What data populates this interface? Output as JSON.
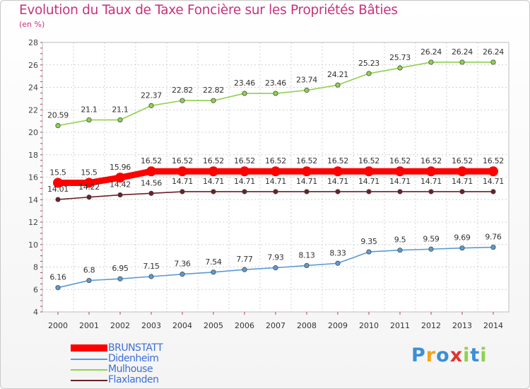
{
  "chart_data": {
    "type": "line",
    "title": "Evolution du Taux de Taxe Foncière sur les Propriétés Bâties",
    "ylabel": "(en %)",
    "xlabel": "",
    "ylim": [
      4,
      28
    ],
    "yticks": [
      4,
      6,
      8,
      10,
      12,
      14,
      16,
      18,
      20,
      22,
      24,
      26,
      28
    ],
    "x": [
      "2000",
      "2001",
      "2002",
      "2003",
      "2004",
      "2005",
      "2006",
      "2007",
      "2008",
      "2009",
      "2010",
      "2011",
      "2012",
      "2013",
      "2014"
    ],
    "grid": true,
    "legend_position": "bottom-left",
    "series": [
      {
        "name": "Mulhouse",
        "color": "#8fd14f",
        "values": [
          20.59,
          21.1,
          21.1,
          22.37,
          22.82,
          22.82,
          23.46,
          23.46,
          23.74,
          24.21,
          25.23,
          25.73,
          26.24,
          26.24,
          26.24
        ],
        "labels": [
          "20.59",
          "21.1",
          "21.1",
          "22.37",
          "22.82",
          "22.82",
          "23.46",
          "23.46",
          "23.74",
          "24.21",
          "25.23",
          "25.73",
          "26.24",
          "26.24",
          "26.24"
        ]
      },
      {
        "name": "BRUNSTATT",
        "color": "#ff0000",
        "values": [
          15.5,
          15.5,
          15.96,
          16.52,
          16.52,
          16.52,
          16.52,
          16.52,
          16.52,
          16.52,
          16.52,
          16.52,
          16.52,
          16.52,
          16.52
        ],
        "labels": [
          "15.5",
          "15.5",
          "15.96",
          "16.52",
          "16.52",
          "16.52",
          "16.52",
          "16.52",
          "16.52",
          "16.52",
          "16.52",
          "16.52",
          "16.52",
          "16.52",
          "16.52"
        ]
      },
      {
        "name": "Flaxlanden",
        "color": "#6b1f2a",
        "values": [
          14.01,
          14.22,
          14.42,
          14.56,
          14.71,
          14.71,
          14.71,
          14.71,
          14.71,
          14.71,
          14.71,
          14.71,
          14.71,
          14.71,
          14.71
        ],
        "labels": [
          "14.01",
          "14.22",
          "14.42",
          "14.56",
          "14.71",
          "14.71",
          "14.71",
          "14.71",
          "14.71",
          "14.71",
          "14.71",
          "14.71",
          "14.71",
          "14.71",
          "14.71"
        ]
      },
      {
        "name": "Didenheim",
        "color": "#5b9bd5",
        "values": [
          6.16,
          6.8,
          6.95,
          7.15,
          7.36,
          7.54,
          7.77,
          7.93,
          8.13,
          8.33,
          9.35,
          9.5,
          9.59,
          9.69,
          9.76
        ],
        "labels": [
          "6.16",
          "6.8",
          "6.95",
          "7.15",
          "7.36",
          "7.54",
          "7.77",
          "7.93",
          "8.13",
          "8.33",
          "9.35",
          "9.5",
          "9.59",
          "9.69",
          "9.76"
        ]
      }
    ],
    "legend": [
      {
        "name": "BRUNSTATT",
        "color": "#ff0000"
      },
      {
        "name": "Didenheim",
        "color": "#5b9bd5"
      },
      {
        "name": "Mulhouse",
        "color": "#8fd14f"
      },
      {
        "name": "Flaxlanden",
        "color": "#6b1f2a"
      }
    ]
  },
  "logo": {
    "letters": [
      "P",
      "r",
      "o",
      "x",
      "i",
      "t",
      "i"
    ],
    "colors": [
      "#3b8fd6",
      "#f5a31a",
      "#3b8fd6",
      "#e3342f",
      "#8fd14f",
      "#3b8fd6",
      "#8fd14f"
    ]
  }
}
